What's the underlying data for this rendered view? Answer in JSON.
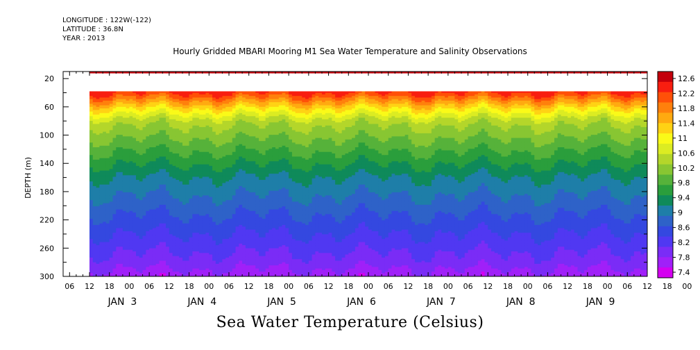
{
  "header": {
    "longitude": "LONGITUDE : 122W(-122)",
    "latitude": "LATITUDE : 36.8N",
    "year": "YEAR : 2013"
  },
  "title": "Hourly Gridded MBARI Mooring M1 Sea Water Temperature and Salinity Observations",
  "variable_title": "Sea Water Temperature (Celsius)",
  "chart_data": {
    "type": "heatmap",
    "ylabel": "DEPTH (m)",
    "y_reversed": true,
    "ylim": [
      300,
      10
    ],
    "yticks": [
      20,
      60,
      100,
      140,
      180,
      220,
      260,
      300
    ],
    "x_hour_ticks": [
      "06",
      "12",
      "18",
      "00",
      "06",
      "12",
      "18",
      "00",
      "06",
      "12",
      "18",
      "00",
      "06",
      "12",
      "18",
      "00",
      "06",
      "12",
      "18",
      "00",
      "06",
      "12",
      "18",
      "00",
      "06",
      "12",
      "18",
      "00",
      "06",
      "12",
      "18",
      "00"
    ],
    "day_labels": [
      "JAN 3",
      "JAN 4",
      "JAN 5",
      "JAN 6",
      "JAN 7",
      "JAN 8",
      "JAN 9"
    ],
    "colorbar_levels": [
      7.4,
      7.8,
      8.2,
      8.6,
      9,
      9.4,
      9.8,
      10.2,
      10.6,
      11,
      11.4,
      11.8,
      12.2,
      12.6
    ],
    "colorbar_labels": [
      "12.6",
      "12.2",
      "11.8",
      "11.4",
      "11",
      "10.6",
      "10.2",
      "9.8",
      "9.4",
      "9",
      "8.6",
      "8.2",
      "7.8",
      "7.4"
    ],
    "colors": [
      "#d400f0",
      "#a020f8",
      "#7a2cf6",
      "#5038f2",
      "#3448e0",
      "#2e62c8",
      "#1e7ea8",
      "#0f8a5a",
      "#2a9e3c",
      "#56b23a",
      "#88c632",
      "#b4d62a",
      "#dcec22",
      "#fafa18",
      "#ffd214",
      "#ffaa10",
      "#ff800c",
      "#ff5008",
      "#f81e10",
      "#c4000c"
    ],
    "gaps": "No data between about 12 m and 38 m depth; no data before 00 JAN 3",
    "depth_profile": [
      {
        "depth": 10,
        "temp": 12.5
      },
      {
        "depth": 40,
        "temp": 12.0
      },
      {
        "depth": 60,
        "temp": 11.0
      },
      {
        "depth": 80,
        "temp": 10.2
      },
      {
        "depth": 120,
        "temp": 9.6
      },
      {
        "depth": 160,
        "temp": 9.0
      },
      {
        "depth": 200,
        "temp": 8.6
      },
      {
        "depth": 240,
        "temp": 8.2
      },
      {
        "depth": 280,
        "temp": 7.8
      },
      {
        "depth": 300,
        "temp": 7.5
      }
    ]
  }
}
